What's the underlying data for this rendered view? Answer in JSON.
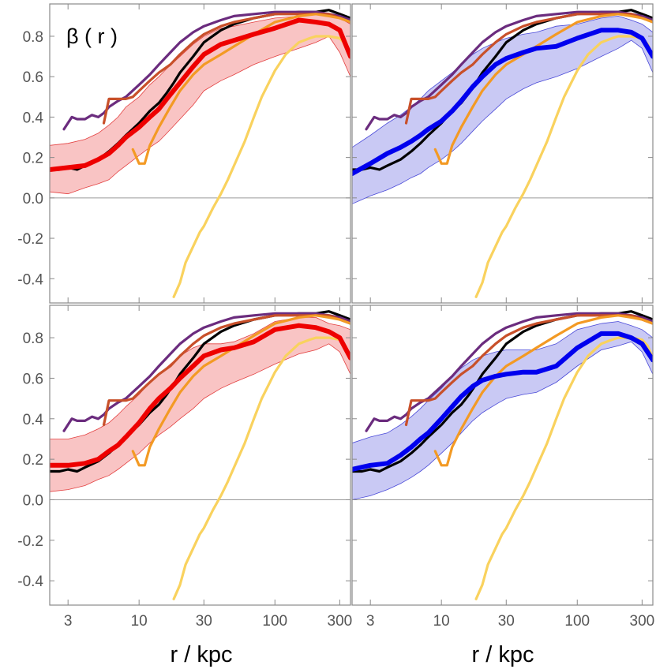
{
  "figure": {
    "panel_label": "β ( r )",
    "xlabel": "r / kpc"
  },
  "chart_data": {
    "type": "line",
    "x_scale": "log",
    "xlim": [
      2.2,
      360
    ],
    "ylim": [
      -0.52,
      0.96
    ],
    "x_ticks": [
      3,
      10,
      30,
      100,
      300
    ],
    "x_tick_labels": [
      "3",
      "10",
      "30",
      "100",
      "300"
    ],
    "y_ticks": [
      -0.4,
      -0.2,
      0.0,
      0.2,
      0.4,
      0.6,
      0.8
    ],
    "y_tick_labels": [
      "-0.4",
      "-0.2",
      "0.0",
      "0.2",
      "0.4",
      "0.6",
      "0.8"
    ],
    "zero_line": 0.0,
    "reference_series": [
      {
        "name": "black",
        "color": "#000000",
        "x": [
          2.2,
          2.6,
          3,
          3.5,
          4,
          5,
          6,
          7,
          8,
          10,
          12,
          14,
          16,
          18,
          20,
          25,
          30,
          40,
          50,
          70,
          100,
          150,
          200,
          250,
          300,
          360
        ],
        "y": [
          0.14,
          0.14,
          0.15,
          0.14,
          0.16,
          0.19,
          0.23,
          0.27,
          0.31,
          0.37,
          0.43,
          0.47,
          0.52,
          0.57,
          0.62,
          0.7,
          0.77,
          0.83,
          0.86,
          0.89,
          0.91,
          0.92,
          0.92,
          0.93,
          0.91,
          0.89
        ]
      },
      {
        "name": "purple",
        "color": "#6B2C7E",
        "x": [
          2.8,
          3.2,
          3.5,
          4,
          4.5,
          5,
          5.5,
          6,
          7,
          8,
          10,
          12,
          14,
          17,
          20,
          25,
          30,
          40,
          50,
          70,
          100,
          150,
          200,
          250,
          300,
          360
        ],
        "y": [
          0.34,
          0.4,
          0.39,
          0.39,
          0.41,
          0.4,
          0.42,
          0.45,
          0.48,
          0.5,
          0.56,
          0.61,
          0.66,
          0.72,
          0.77,
          0.82,
          0.85,
          0.88,
          0.9,
          0.91,
          0.92,
          0.92,
          0.92,
          0.91,
          0.9,
          0.88
        ]
      },
      {
        "name": "copper",
        "color": "#C8502A",
        "x": [
          5.5,
          6,
          7,
          8,
          9,
          10,
          12,
          14,
          17,
          20,
          25,
          30,
          40,
          50,
          70,
          100,
          150,
          200,
          250,
          300,
          360
        ],
        "y": [
          0.37,
          0.49,
          0.49,
          0.49,
          0.5,
          0.53,
          0.58,
          0.62,
          0.66,
          0.71,
          0.77,
          0.81,
          0.85,
          0.87,
          0.89,
          0.91,
          0.91,
          0.91,
          0.91,
          0.89,
          0.87
        ]
      },
      {
        "name": "orange",
        "color": "#F39A24",
        "x": [
          9,
          10,
          11,
          12,
          14,
          17,
          20,
          25,
          30,
          40,
          50,
          70,
          100,
          150,
          200,
          250,
          300,
          360
        ],
        "y": [
          0.24,
          0.17,
          0.17,
          0.26,
          0.35,
          0.45,
          0.53,
          0.61,
          0.66,
          0.71,
          0.75,
          0.81,
          0.87,
          0.9,
          0.91,
          0.9,
          0.89,
          0.87
        ]
      },
      {
        "name": "yellow",
        "color": "#F9D25E",
        "x": [
          18,
          20,
          22,
          25,
          28,
          30,
          35,
          40,
          45,
          50,
          60,
          70,
          80,
          100,
          120,
          150,
          180,
          200,
          250,
          300,
          330,
          360
        ],
        "y": [
          -0.49,
          -0.42,
          -0.32,
          -0.24,
          -0.17,
          -0.14,
          -0.05,
          0.02,
          0.09,
          0.16,
          0.28,
          0.4,
          0.5,
          0.63,
          0.71,
          0.77,
          0.79,
          0.8,
          0.8,
          0.79,
          0.76,
          0.7
        ]
      }
    ],
    "panels": [
      {
        "id": "top-left",
        "highlight": {
          "name": "red",
          "color": "#EE0000",
          "band_fill": "#F9C4C4",
          "band_stroke": "#E34040",
          "x": [
            2.2,
            3,
            4,
            5,
            6,
            7,
            8,
            10,
            12,
            14,
            16,
            20,
            25,
            30,
            40,
            50,
            70,
            100,
            150,
            200,
            250,
            300,
            360
          ],
          "y": [
            0.14,
            0.15,
            0.16,
            0.19,
            0.22,
            0.26,
            0.3,
            0.35,
            0.4,
            0.44,
            0.49,
            0.57,
            0.65,
            0.71,
            0.76,
            0.78,
            0.81,
            0.84,
            0.88,
            0.87,
            0.86,
            0.83,
            0.7
          ],
          "lo": [
            0.03,
            0.02,
            0.05,
            0.07,
            0.09,
            0.13,
            0.16,
            0.21,
            0.25,
            0.28,
            0.32,
            0.39,
            0.46,
            0.53,
            0.58,
            0.61,
            0.66,
            0.7,
            0.74,
            0.77,
            0.8,
            0.72,
            0.6
          ],
          "hi": [
            0.26,
            0.27,
            0.29,
            0.32,
            0.36,
            0.4,
            0.45,
            0.5,
            0.56,
            0.6,
            0.64,
            0.7,
            0.76,
            0.8,
            0.84,
            0.85,
            0.87,
            0.89,
            0.9,
            0.91,
            0.9,
            0.89,
            0.86
          ]
        }
      },
      {
        "id": "top-right",
        "highlight": {
          "name": "blue",
          "color": "#0000EE",
          "band_fill": "#C9C9F4",
          "band_stroke": "#4A4AD8",
          "x": [
            2.2,
            3,
            4,
            5,
            6,
            7,
            8,
            10,
            12,
            14,
            17,
            20,
            25,
            30,
            40,
            50,
            70,
            100,
            150,
            200,
            250,
            300,
            360
          ],
          "y": [
            0.12,
            0.17,
            0.22,
            0.25,
            0.28,
            0.31,
            0.34,
            0.38,
            0.43,
            0.48,
            0.55,
            0.6,
            0.66,
            0.69,
            0.72,
            0.74,
            0.75,
            0.79,
            0.83,
            0.83,
            0.82,
            0.79,
            0.7
          ],
          "lo": [
            -0.03,
            0.01,
            0.04,
            0.07,
            0.1,
            0.12,
            0.15,
            0.19,
            0.23,
            0.27,
            0.33,
            0.38,
            0.44,
            0.49,
            0.54,
            0.57,
            0.6,
            0.64,
            0.7,
            0.74,
            0.78,
            0.74,
            0.62
          ],
          "hi": [
            0.25,
            0.31,
            0.37,
            0.41,
            0.45,
            0.49,
            0.53,
            0.58,
            0.62,
            0.66,
            0.71,
            0.74,
            0.77,
            0.79,
            0.81,
            0.82,
            0.85,
            0.86,
            0.89,
            0.9,
            0.88,
            0.86,
            0.82
          ]
        }
      },
      {
        "id": "bottom-left",
        "highlight": {
          "name": "red",
          "color": "#EE0000",
          "band_fill": "#F9C4C4",
          "band_stroke": "#E34040",
          "x": [
            2.2,
            3,
            4,
            5,
            6,
            7,
            8,
            10,
            12,
            14,
            17,
            20,
            25,
            30,
            40,
            50,
            70,
            100,
            150,
            200,
            250,
            300,
            360
          ],
          "y": [
            0.17,
            0.17,
            0.18,
            0.2,
            0.24,
            0.27,
            0.31,
            0.38,
            0.45,
            0.5,
            0.55,
            0.6,
            0.66,
            0.71,
            0.74,
            0.75,
            0.78,
            0.84,
            0.86,
            0.85,
            0.83,
            0.8,
            0.7
          ],
          "lo": [
            0.04,
            0.05,
            0.07,
            0.1,
            0.12,
            0.15,
            0.18,
            0.23,
            0.28,
            0.32,
            0.36,
            0.4,
            0.45,
            0.5,
            0.55,
            0.58,
            0.62,
            0.67,
            0.72,
            0.74,
            0.77,
            0.73,
            0.62
          ],
          "hi": [
            0.3,
            0.3,
            0.32,
            0.35,
            0.38,
            0.42,
            0.46,
            0.52,
            0.58,
            0.62,
            0.67,
            0.71,
            0.75,
            0.77,
            0.77,
            0.78,
            0.82,
            0.88,
            0.9,
            0.9,
            0.87,
            0.86,
            0.84
          ]
        }
      },
      {
        "id": "bottom-right",
        "highlight": {
          "name": "blue",
          "color": "#0000EE",
          "band_fill": "#C9C9F4",
          "band_stroke": "#4A4AD8",
          "x": [
            2.2,
            3,
            4,
            5,
            6,
            7,
            8,
            10,
            12,
            14,
            17,
            20,
            25,
            30,
            40,
            50,
            70,
            100,
            150,
            200,
            250,
            300,
            360
          ],
          "y": [
            0.15,
            0.17,
            0.18,
            0.22,
            0.26,
            0.3,
            0.33,
            0.4,
            0.46,
            0.51,
            0.56,
            0.59,
            0.61,
            0.62,
            0.63,
            0.63,
            0.66,
            0.75,
            0.82,
            0.82,
            0.8,
            0.77,
            0.69
          ],
          "lo": [
            0.0,
            0.02,
            0.05,
            0.08,
            0.11,
            0.14,
            0.17,
            0.23,
            0.28,
            0.33,
            0.39,
            0.43,
            0.47,
            0.5,
            0.52,
            0.53,
            0.58,
            0.66,
            0.74,
            0.76,
            0.78,
            0.73,
            0.62
          ],
          "hi": [
            0.28,
            0.31,
            0.33,
            0.37,
            0.41,
            0.45,
            0.49,
            0.55,
            0.61,
            0.65,
            0.69,
            0.71,
            0.73,
            0.74,
            0.74,
            0.74,
            0.77,
            0.84,
            0.87,
            0.88,
            0.86,
            0.84,
            0.8
          ]
        }
      }
    ]
  }
}
